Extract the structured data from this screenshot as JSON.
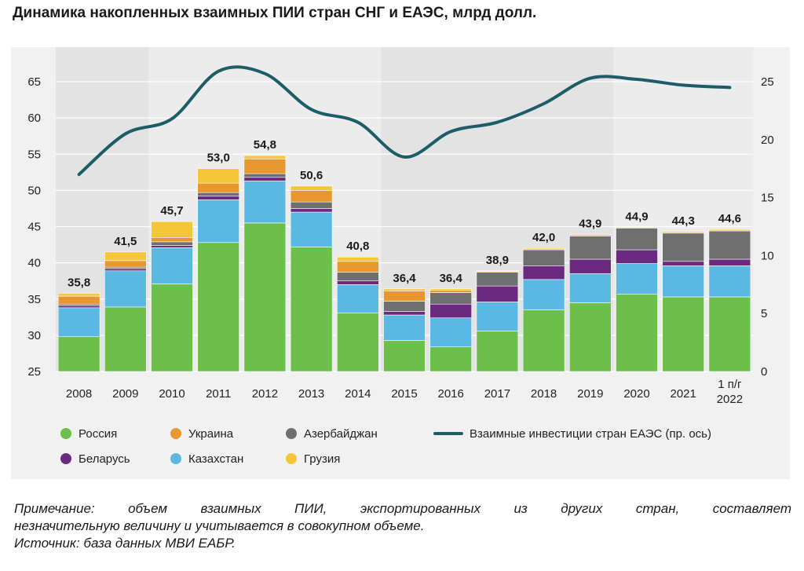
{
  "title": "Динамика накопленных взаимных ПИИ стран СНГ и ЕАЭС, млрд долл.",
  "notes": {
    "note_line1": "Примечание: объем взаимных ПИИ, экспортированных из других стран, составляет",
    "note_line2": "незначительную величину и учитывается в совокупном объеме.",
    "source": "Источник: база данных МВИ ЕАБР."
  },
  "colors": {
    "russia": "#6cbf4a",
    "belarus": "#6b2a7f",
    "ukraine": "#e8962f",
    "kazakhstan": "#5bb8e3",
    "azerbaijan": "#6f6f6f",
    "georgia": "#f5c53a",
    "line": "#1d5d68"
  },
  "chart_data": {
    "type": "bar",
    "stacked": true,
    "categories": [
      "2008",
      "2009",
      "2010",
      "2011",
      "2012",
      "2013",
      "2014",
      "2015",
      "2016",
      "2017",
      "2018",
      "2019",
      "2020",
      "2021",
      [
        "1 п/г",
        "2022"
      ]
    ],
    "totals": [
      35.8,
      41.5,
      45.7,
      53.0,
      54.8,
      50.6,
      40.8,
      36.4,
      36.4,
      38.9,
      42.0,
      43.9,
      44.9,
      44.3,
      44.6
    ],
    "total_labels": [
      "35,8",
      "41,5",
      "45,7",
      "53,0",
      "54,8",
      "50,6",
      "40,8",
      "36,4",
      "36,4",
      "38,9",
      "42,0",
      "43,9",
      "44,9",
      "44,3",
      "44,6"
    ],
    "series": [
      {
        "name": "Россия",
        "key": "russia",
        "values": [
          29.8,
          33.9,
          37.1,
          42.8,
          45.5,
          42.2,
          33.1,
          29.3,
          28.4,
          30.6,
          33.5,
          34.5,
          35.7,
          35.3,
          35.3
        ]
      },
      {
        "name": "Казахстан",
        "key": "kazakhstan",
        "values": [
          4.0,
          5.0,
          5.0,
          5.9,
          5.8,
          4.8,
          3.9,
          3.5,
          4.0,
          4.0,
          4.2,
          4.0,
          4.2,
          4.3,
          4.3
        ]
      },
      {
        "name": "Беларусь",
        "key": "belarus",
        "values": [
          0.3,
          0.3,
          0.3,
          0.5,
          0.5,
          0.5,
          0.5,
          0.5,
          1.9,
          2.2,
          1.9,
          2.0,
          1.9,
          0.6,
          0.9
        ]
      },
      {
        "name": "Азербайджан",
        "key": "azerbaijan",
        "values": [
          0.2,
          0.2,
          0.5,
          0.5,
          0.5,
          0.9,
          1.2,
          1.4,
          1.6,
          1.9,
          2.2,
          3.2,
          3.0,
          3.9,
          3.9
        ]
      },
      {
        "name": "Украина",
        "key": "ukraine",
        "values": [
          1.1,
          0.9,
          0.6,
          1.3,
          2.0,
          1.6,
          1.5,
          1.4,
          0.3,
          0.1,
          0.0,
          0.0,
          0.0,
          0.0,
          0.0
        ]
      },
      {
        "name": "Грузия",
        "key": "georgia",
        "values": [
          0.4,
          1.2,
          2.2,
          2.0,
          0.5,
          0.6,
          0.6,
          0.3,
          0.2,
          0.1,
          0.2,
          0.2,
          0.1,
          0.2,
          0.2
        ]
      }
    ],
    "line_series": {
      "name": "Взаимные инвестиции стран ЕАЭС (пр. ось)",
      "key": "line",
      "axis": "right",
      "values": [
        17.0,
        20.5,
        21.8,
        25.9,
        25.7,
        22.6,
        21.5,
        18.5,
        20.7,
        21.5,
        23.1,
        25.3,
        25.2,
        24.7,
        24.5
      ]
    },
    "y_left": {
      "min": 25,
      "max": 65,
      "ticks": [
        25,
        30,
        35,
        40,
        45,
        50,
        55,
        60,
        65
      ]
    },
    "y_right": {
      "min": 0,
      "max": 25,
      "ticks": [
        0,
        5,
        10,
        15,
        20,
        25
      ]
    },
    "legend": [
      {
        "label": "Россия",
        "key": "russia",
        "kind": "dot"
      },
      {
        "label": "Украина",
        "key": "ukraine",
        "kind": "dot"
      },
      {
        "label": "Азербайджан",
        "key": "azerbaijan",
        "kind": "dot"
      },
      {
        "label": "Взаимные инвестиции стран ЕАЭС (пр. ось)",
        "key": "line",
        "kind": "line"
      },
      {
        "label": "Беларусь",
        "key": "belarus",
        "kind": "dot"
      },
      {
        "label": "Казахстан",
        "key": "kazakhstan",
        "kind": "dot"
      },
      {
        "label": "Грузия",
        "key": "georgia",
        "kind": "dot"
      }
    ],
    "legend_position": "bottom"
  }
}
